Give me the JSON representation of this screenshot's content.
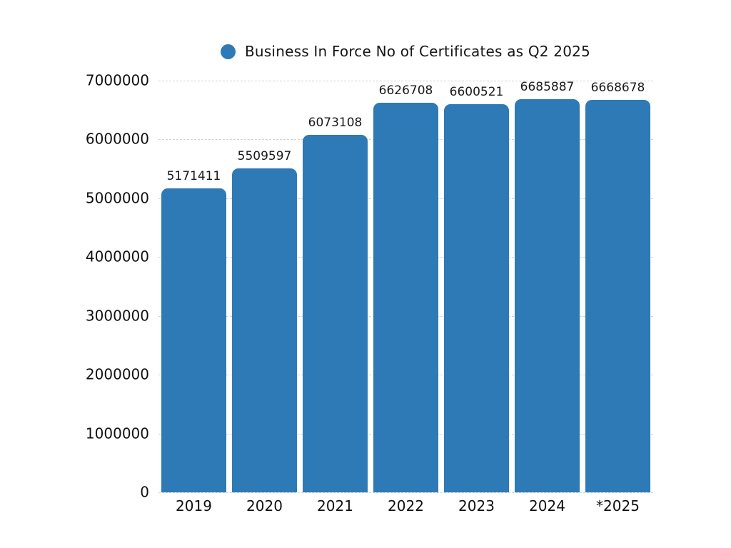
{
  "page": {
    "background_color": "#ffffff",
    "text_color": "#161616"
  },
  "chart_data": {
    "type": "bar",
    "title": "",
    "xlabel": "",
    "ylabel": "",
    "legend": {
      "label": "Business In Force No of Certificates as Q2 2025",
      "marker": "circle-icon",
      "marker_color": "#2d7ab6",
      "position": "top-center"
    },
    "categories": [
      "2019",
      "2020",
      "2021",
      "2022",
      "2023",
      "2024",
      "*2025"
    ],
    "values": [
      5171411,
      5509597,
      6073108,
      6626708,
      6600521,
      6685887,
      6668678
    ],
    "value_labels": [
      "5171411",
      "5509597",
      "6073108",
      "6626708",
      "6600521",
      "6685887",
      "6668678"
    ],
    "bar_color": "#2d7ab6",
    "ylim": [
      0,
      7000000
    ],
    "ytick_values": [
      0,
      1000000,
      2000000,
      3000000,
      4000000,
      5000000,
      6000000,
      7000000
    ],
    "ytick_labels": [
      "0",
      "1000000",
      "2000000",
      "3000000",
      "4000000",
      "5000000",
      "6000000",
      "7000000"
    ],
    "grid": {
      "horizontal": true,
      "vertical": false,
      "style": "dashed",
      "color": "#ccd4db"
    }
  }
}
